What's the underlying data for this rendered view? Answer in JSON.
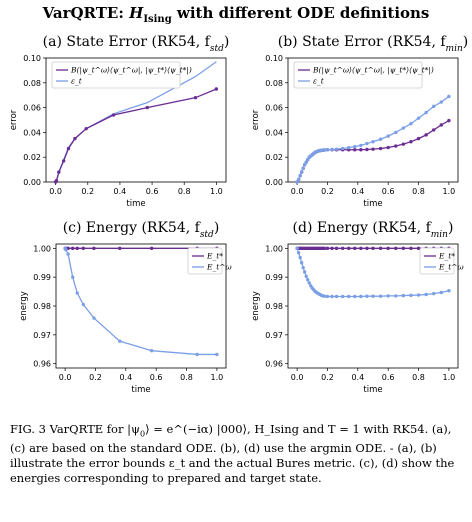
{
  "figure": {
    "title_prefix": "VarQRTE: ",
    "title_ham": "H",
    "title_ham_sub": "Ising",
    "title_suffix": " with different ODE definitions"
  },
  "chart_data": [
    {
      "id": "a",
      "type": "line",
      "panel_title": "(a) State Error (RK54, f",
      "panel_title_sub": "std",
      "xlabel": "time",
      "ylabel": "error",
      "xlim": [
        -0.06,
        1.06
      ],
      "ylim": [
        0,
        0.1
      ],
      "xticks": [
        0.0,
        0.2,
        0.4,
        0.6,
        0.8,
        1.0
      ],
      "yticks": [
        0.0,
        0.02,
        0.04,
        0.06,
        0.08,
        0.1
      ],
      "ytick_labels": [
        "0.00",
        "0.02",
        "0.04",
        "0.06",
        "0.08",
        "0.10"
      ],
      "xtick_labels": [
        "0.0",
        "0.2",
        "0.4",
        "0.6",
        "0.8",
        "1.0"
      ],
      "legend_position": "top-left",
      "grid": false,
      "series": [
        {
          "name": "B(|ψ_t^ω⟩⟨ψ_t^ω|, |ψ_t*⟩⟨ψ_t*|)",
          "color": "#6a2c91",
          "markers": true,
          "x": [
            0.0,
            0.005,
            0.02,
            0.05,
            0.08,
            0.12,
            0.19,
            0.36,
            0.57,
            0.87,
            1.0
          ],
          "y": [
            0.0,
            0.001,
            0.008,
            0.017,
            0.027,
            0.035,
            0.043,
            0.054,
            0.06,
            0.068,
            0.075
          ]
        },
        {
          "name": "ε_t",
          "color": "#7b9fe6",
          "markers": false,
          "x": [
            0.0,
            0.005,
            0.02,
            0.05,
            0.08,
            0.12,
            0.19,
            0.36,
            0.57,
            0.87,
            1.0
          ],
          "y": [
            0.0,
            0.001,
            0.008,
            0.018,
            0.028,
            0.035,
            0.043,
            0.055,
            0.064,
            0.085,
            0.097
          ]
        }
      ]
    },
    {
      "id": "b",
      "type": "line",
      "panel_title": "(b) State Error (RK54, f",
      "panel_title_sub": "min",
      "xlabel": "time",
      "ylabel": "error",
      "xlim": [
        -0.06,
        1.06
      ],
      "ylim": [
        0,
        0.1
      ],
      "xticks": [
        0.0,
        0.2,
        0.4,
        0.6,
        0.8,
        1.0
      ],
      "yticks": [
        0.0,
        0.02,
        0.04,
        0.06,
        0.08,
        0.1
      ],
      "ytick_labels": [
        "0.00",
        "0.02",
        "0.04",
        "0.06",
        "0.08",
        "0.10"
      ],
      "xtick_labels": [
        "0.0",
        "0.2",
        "0.4",
        "0.6",
        "0.8",
        "1.0"
      ],
      "legend_position": "top-left",
      "grid": false,
      "series": [
        {
          "name": "B(|ψ_t^ω⟩⟨ψ_t^ω|, |ψ_t*⟩⟨ψ_t*|)",
          "color": "#6a2c91",
          "markers": true,
          "x": [
            0.0,
            0.01,
            0.02,
            0.03,
            0.04,
            0.05,
            0.06,
            0.07,
            0.08,
            0.09,
            0.1,
            0.11,
            0.12,
            0.13,
            0.14,
            0.15,
            0.16,
            0.17,
            0.18,
            0.2,
            0.23,
            0.26,
            0.3,
            0.34,
            0.38,
            0.42,
            0.46,
            0.5,
            0.55,
            0.6,
            0.65,
            0.7,
            0.75,
            0.8,
            0.85,
            0.9,
            0.95,
            1.0
          ],
          "y": [
            0.0,
            0.002,
            0.005,
            0.008,
            0.011,
            0.014,
            0.016,
            0.018,
            0.02,
            0.021,
            0.022,
            0.023,
            0.024,
            0.0245,
            0.025,
            0.0253,
            0.0255,
            0.0257,
            0.0258,
            0.026,
            0.026,
            0.026,
            0.026,
            0.026,
            0.026,
            0.026,
            0.0262,
            0.0265,
            0.027,
            0.0278,
            0.029,
            0.0305,
            0.0325,
            0.035,
            0.038,
            0.042,
            0.046,
            0.0495
          ]
        },
        {
          "name": "ε_t",
          "color": "#7b9fe6",
          "markers": true,
          "x": [
            0.0,
            0.01,
            0.02,
            0.03,
            0.04,
            0.05,
            0.06,
            0.07,
            0.08,
            0.09,
            0.1,
            0.11,
            0.12,
            0.13,
            0.14,
            0.15,
            0.16,
            0.17,
            0.18,
            0.2,
            0.23,
            0.26,
            0.3,
            0.34,
            0.38,
            0.42,
            0.46,
            0.5,
            0.55,
            0.6,
            0.65,
            0.7,
            0.75,
            0.8,
            0.85,
            0.9,
            0.95,
            1.0
          ],
          "y": [
            0.0,
            0.002,
            0.005,
            0.008,
            0.011,
            0.014,
            0.016,
            0.018,
            0.02,
            0.021,
            0.022,
            0.023,
            0.024,
            0.0245,
            0.025,
            0.0253,
            0.0255,
            0.0257,
            0.0258,
            0.026,
            0.0262,
            0.0265,
            0.027,
            0.0277,
            0.0285,
            0.0295,
            0.031,
            0.0325,
            0.0345,
            0.037,
            0.04,
            0.0435,
            0.047,
            0.0515,
            0.056,
            0.061,
            0.0645,
            0.069
          ]
        }
      ]
    },
    {
      "id": "c",
      "type": "line",
      "panel_title": "(c) Energy (RK54, f",
      "panel_title_sub": "std",
      "xlabel": "time",
      "ylabel": "energy",
      "xlim": [
        -0.06,
        1.06
      ],
      "ylim": [
        0.9585,
        1.0015
      ],
      "xticks": [
        0.0,
        0.2,
        0.4,
        0.6,
        0.8,
        1.0
      ],
      "yticks": [
        0.96,
        0.97,
        0.98,
        0.99,
        1.0
      ],
      "ytick_labels": [
        "0.96",
        "0.97",
        "0.98",
        "0.99",
        "1.00"
      ],
      "xtick_labels": [
        "0.0",
        "0.2",
        "0.4",
        "0.6",
        "0.8",
        "1.0"
      ],
      "legend_position": "top-right",
      "grid": false,
      "series": [
        {
          "name": "E_t*",
          "color": "#6a2c91",
          "markers": true,
          "x": [
            0.0,
            0.005,
            0.02,
            0.05,
            0.08,
            0.12,
            0.19,
            0.36,
            0.57,
            0.87,
            1.0
          ],
          "y": [
            1.0,
            1.0,
            1.0,
            1.0,
            1.0,
            1.0,
            1.0,
            1.0,
            1.0,
            1.0,
            1.0
          ]
        },
        {
          "name": "E_t^ω",
          "color": "#7b9fe6",
          "markers": true,
          "x": [
            0.0,
            0.005,
            0.02,
            0.05,
            0.08,
            0.12,
            0.19,
            0.36,
            0.57,
            0.87,
            1.0
          ],
          "y": [
            1.0,
            0.9995,
            0.998,
            0.99,
            0.9845,
            0.9805,
            0.9758,
            0.9678,
            0.9645,
            0.9632,
            0.9632
          ]
        }
      ]
    },
    {
      "id": "d",
      "type": "line",
      "panel_title": "(d) Energy (RK54, f",
      "panel_title_sub": "min",
      "xlabel": "time",
      "ylabel": "energy",
      "xlim": [
        -0.06,
        1.06
      ],
      "ylim": [
        0.9585,
        1.0015
      ],
      "xticks": [
        0.0,
        0.2,
        0.4,
        0.6,
        0.8,
        1.0
      ],
      "yticks": [
        0.96,
        0.97,
        0.98,
        0.99,
        1.0
      ],
      "ytick_labels": [
        "0.96",
        "0.97",
        "0.98",
        "0.99",
        "1.00"
      ],
      "xtick_labels": [
        "0.0",
        "0.2",
        "0.4",
        "0.6",
        "0.8",
        "1.0"
      ],
      "legend_position": "top-right",
      "grid": false,
      "series": [
        {
          "name": "E_t*",
          "color": "#6a2c91",
          "markers": true,
          "x": [
            0.0,
            0.01,
            0.02,
            0.03,
            0.04,
            0.05,
            0.06,
            0.07,
            0.08,
            0.09,
            0.1,
            0.11,
            0.12,
            0.13,
            0.14,
            0.15,
            0.16,
            0.17,
            0.18,
            0.2,
            0.23,
            0.26,
            0.3,
            0.34,
            0.38,
            0.42,
            0.46,
            0.5,
            0.55,
            0.6,
            0.65,
            0.7,
            0.75,
            0.8,
            0.85,
            0.9,
            0.95,
            1.0
          ],
          "y": [
            1.0,
            1.0,
            1.0,
            1.0,
            1.0,
            1.0,
            1.0,
            1.0,
            1.0,
            1.0,
            1.0,
            1.0,
            1.0,
            1.0,
            1.0,
            1.0,
            1.0,
            1.0,
            1.0,
            1.0,
            1.0,
            1.0,
            1.0,
            1.0,
            1.0,
            1.0,
            1.0,
            1.0,
            1.0,
            1.0,
            1.0,
            1.0,
            1.0,
            1.0,
            1.0,
            1.0,
            1.0,
            1.0
          ]
        },
        {
          "name": "E_t^ω",
          "color": "#7b9fe6",
          "markers": true,
          "x": [
            0.0,
            0.01,
            0.02,
            0.03,
            0.04,
            0.05,
            0.06,
            0.07,
            0.08,
            0.09,
            0.1,
            0.11,
            0.12,
            0.13,
            0.14,
            0.15,
            0.16,
            0.17,
            0.18,
            0.2,
            0.23,
            0.26,
            0.3,
            0.34,
            0.38,
            0.42,
            0.46,
            0.5,
            0.55,
            0.6,
            0.65,
            0.7,
            0.75,
            0.8,
            0.85,
            0.9,
            0.95,
            1.0
          ],
          "y": [
            1.0,
            0.9985,
            0.9968,
            0.995,
            0.9933,
            0.9918,
            0.9903,
            0.9891,
            0.988,
            0.987,
            0.9862,
            0.9856,
            0.985,
            0.9846,
            0.9843,
            0.984,
            0.9837,
            0.9835,
            0.9834,
            0.9833,
            0.9833,
            0.9833,
            0.9833,
            0.9833,
            0.9833,
            0.9833,
            0.9834,
            0.9834,
            0.9834,
            0.9835,
            0.9835,
            0.9836,
            0.9837,
            0.9838,
            0.984,
            0.9843,
            0.9847,
            0.9853
          ]
        }
      ]
    }
  ],
  "caption": {
    "lead": "FIG. 3 VarQRTE for |ψ",
    "text": "⟩ = e^(−iα) |000⟩, H_Ising and T = 1 with RK54. (a), (c) are based on the standard ODE. (b), (d) use the argmin ODE. - (a), (b) illustrate the error bounds ε_t and the actual Bures metric. (c), (d) show the energies corresponding to prepared and target state."
  }
}
